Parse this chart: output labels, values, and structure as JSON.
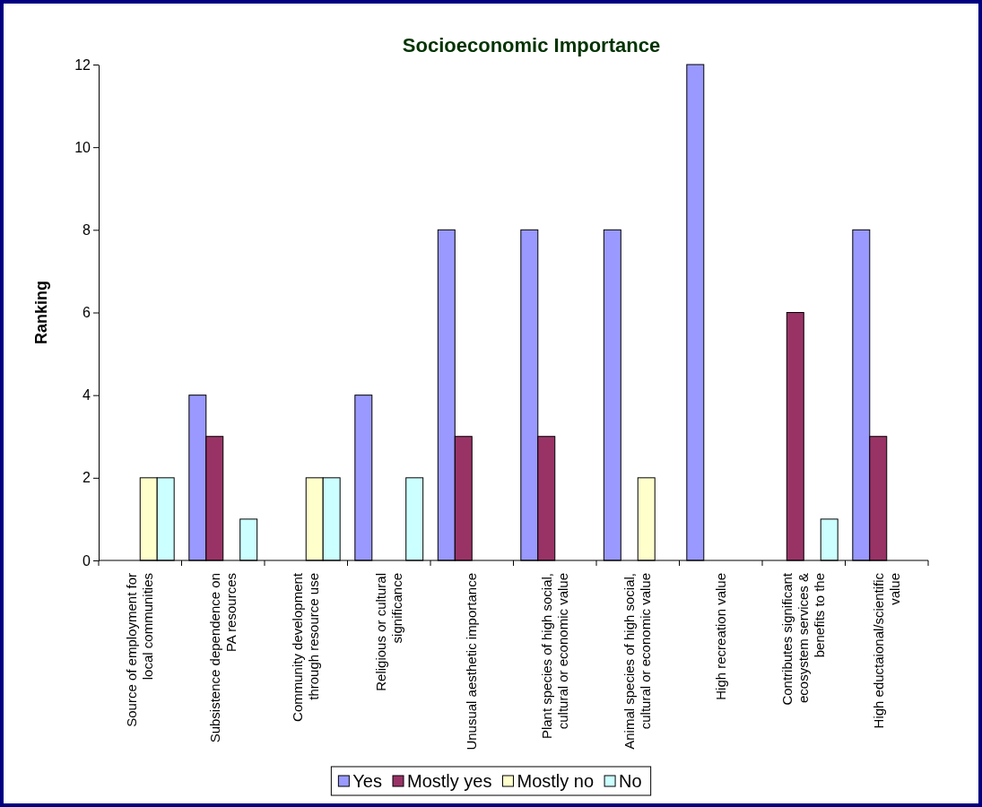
{
  "chart_data": {
    "type": "bar",
    "title": "Socioeconomic Importance",
    "ylabel": "Ranking",
    "categories": [
      "Source of employment for local communities",
      "Subsistence dependence on PA resources",
      "Community development through resource use",
      "Religious or cultural significance",
      "Unusual aesthetic importance",
      "Plant species of high social, cultural or economic value",
      "Animal species of high social, cultural or economic value",
      "High recreation value",
      "Contributes significant ecosystem services & benefits to the",
      "High eductaional/scientific value"
    ],
    "series": [
      {
        "name": "Yes",
        "color": "#9999ff",
        "values": [
          null,
          4,
          null,
          4,
          8,
          8,
          8,
          12,
          null,
          8
        ]
      },
      {
        "name": "Mostly yes",
        "color": "#993366",
        "values": [
          null,
          3,
          null,
          null,
          3,
          3,
          null,
          null,
          6,
          3
        ]
      },
      {
        "name": "Mostly no",
        "color": "#ffffcc",
        "values": [
          2,
          null,
          2,
          null,
          null,
          null,
          2,
          null,
          null,
          null
        ]
      },
      {
        "name": "No",
        "color": "#ccffff",
        "values": [
          2,
          1,
          2,
          2,
          null,
          null,
          null,
          null,
          1,
          null
        ]
      }
    ],
    "ylim": [
      0,
      12
    ],
    "yticks": [
      0,
      2,
      4,
      6,
      8,
      10,
      12
    ],
    "grid": false,
    "legend": "bottom"
  }
}
